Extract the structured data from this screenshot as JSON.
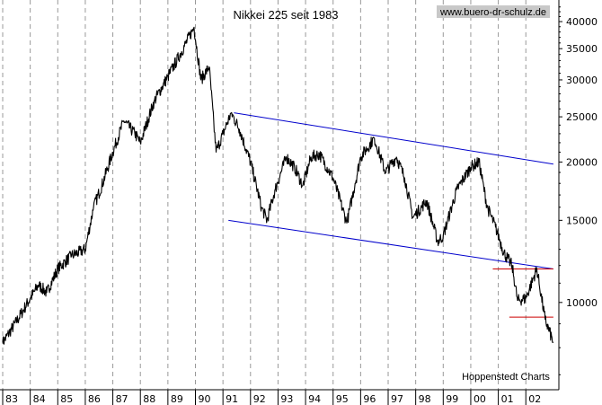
{
  "chart_data": {
    "type": "line",
    "title": "Nikkei 225 seit 1983",
    "watermark": "www.buero-dr-schulz.de",
    "credit": "Hoppenstedt Charts",
    "y_scale": "log",
    "ylim": [
      6500,
      44500
    ],
    "xlim": [
      1983.0,
      2003.2
    ],
    "y_ticks": [
      10000,
      15000,
      20000,
      25000,
      30000,
      35000,
      40000
    ],
    "y_tick_labels": [
      "10000",
      "15000",
      "20000",
      "25000",
      "30000",
      "35000",
      "40000"
    ],
    "y_axis_position": "right",
    "x_ticks": [
      1983,
      1984,
      1985,
      1986,
      1987,
      1988,
      1989,
      1990,
      1991,
      1992,
      1993,
      1994,
      1995,
      1996,
      1997,
      1998,
      1999,
      2000,
      2001,
      2002
    ],
    "x_tick_labels": [
      "83",
      "84",
      "85",
      "86",
      "87",
      "88",
      "89",
      "90",
      "91",
      "92",
      "93",
      "94",
      "95",
      "96",
      "97",
      "98",
      "99",
      "00",
      "01",
      "02"
    ],
    "grid": "vertical dashed at each year",
    "colors": {
      "series": "#000000",
      "channel": "#0000cc",
      "support": "#cc0000",
      "grid": "#999999"
    },
    "series": [
      {
        "x": [
          1983.0,
          1983.5,
          1984.0,
          1984.3,
          1984.6,
          1985.0,
          1985.5,
          1986.0,
          1986.3,
          1986.6,
          1987.0,
          1987.4,
          1987.8,
          1988.0,
          1988.5,
          1989.0,
          1989.5,
          1989.95,
          1990.2,
          1990.5,
          1990.75,
          1991.0,
          1991.3,
          1991.6,
          1992.0,
          1992.4,
          1992.6,
          1992.9,
          1993.3,
          1993.6,
          1993.9,
          1994.2,
          1994.5,
          1995.0,
          1995.5,
          1995.8,
          1996.0,
          1996.5,
          1996.9,
          1997.3,
          1997.6,
          1997.9,
          1998.4,
          1998.8,
          1999.0,
          1999.5,
          2000.0,
          2000.3,
          2000.6,
          2000.9,
          2001.2,
          2001.5,
          2001.7,
          2002.0,
          2002.4,
          2002.7,
          2003.0
        ],
        "values": [
          8200,
          9100,
          10200,
          10900,
          10500,
          11800,
          12600,
          13000,
          16000,
          17800,
          21000,
          24500,
          23000,
          22000,
          27000,
          30500,
          34500,
          38900,
          30000,
          32000,
          21000,
          23000,
          25500,
          23500,
          20000,
          16000,
          15000,
          17500,
          20500,
          19500,
          17800,
          20500,
          20800,
          18500,
          14800,
          18000,
          20500,
          22500,
          19000,
          20500,
          18500,
          15200,
          16500,
          13500,
          13900,
          17500,
          19500,
          20000,
          16000,
          14500,
          12800,
          12000,
          10100,
          10200,
          11800,
          9200,
          8200
        ]
      }
    ],
    "annotations": [
      {
        "type": "channel-line",
        "color": "blue",
        "x": [
          1991.4,
          2003.0
        ],
        "y": [
          25500,
          19800
        ]
      },
      {
        "type": "channel-line",
        "color": "blue",
        "x": [
          1991.2,
          2003.0
        ],
        "y": [
          15000,
          11800
        ]
      },
      {
        "type": "support-line",
        "color": "red",
        "x": [
          2000.8,
          2003.0
        ],
        "y": [
          11800,
          11800
        ]
      },
      {
        "type": "support-line",
        "color": "red",
        "x": [
          2001.4,
          2003.0
        ],
        "y": [
          9300,
          9300
        ]
      }
    ]
  }
}
